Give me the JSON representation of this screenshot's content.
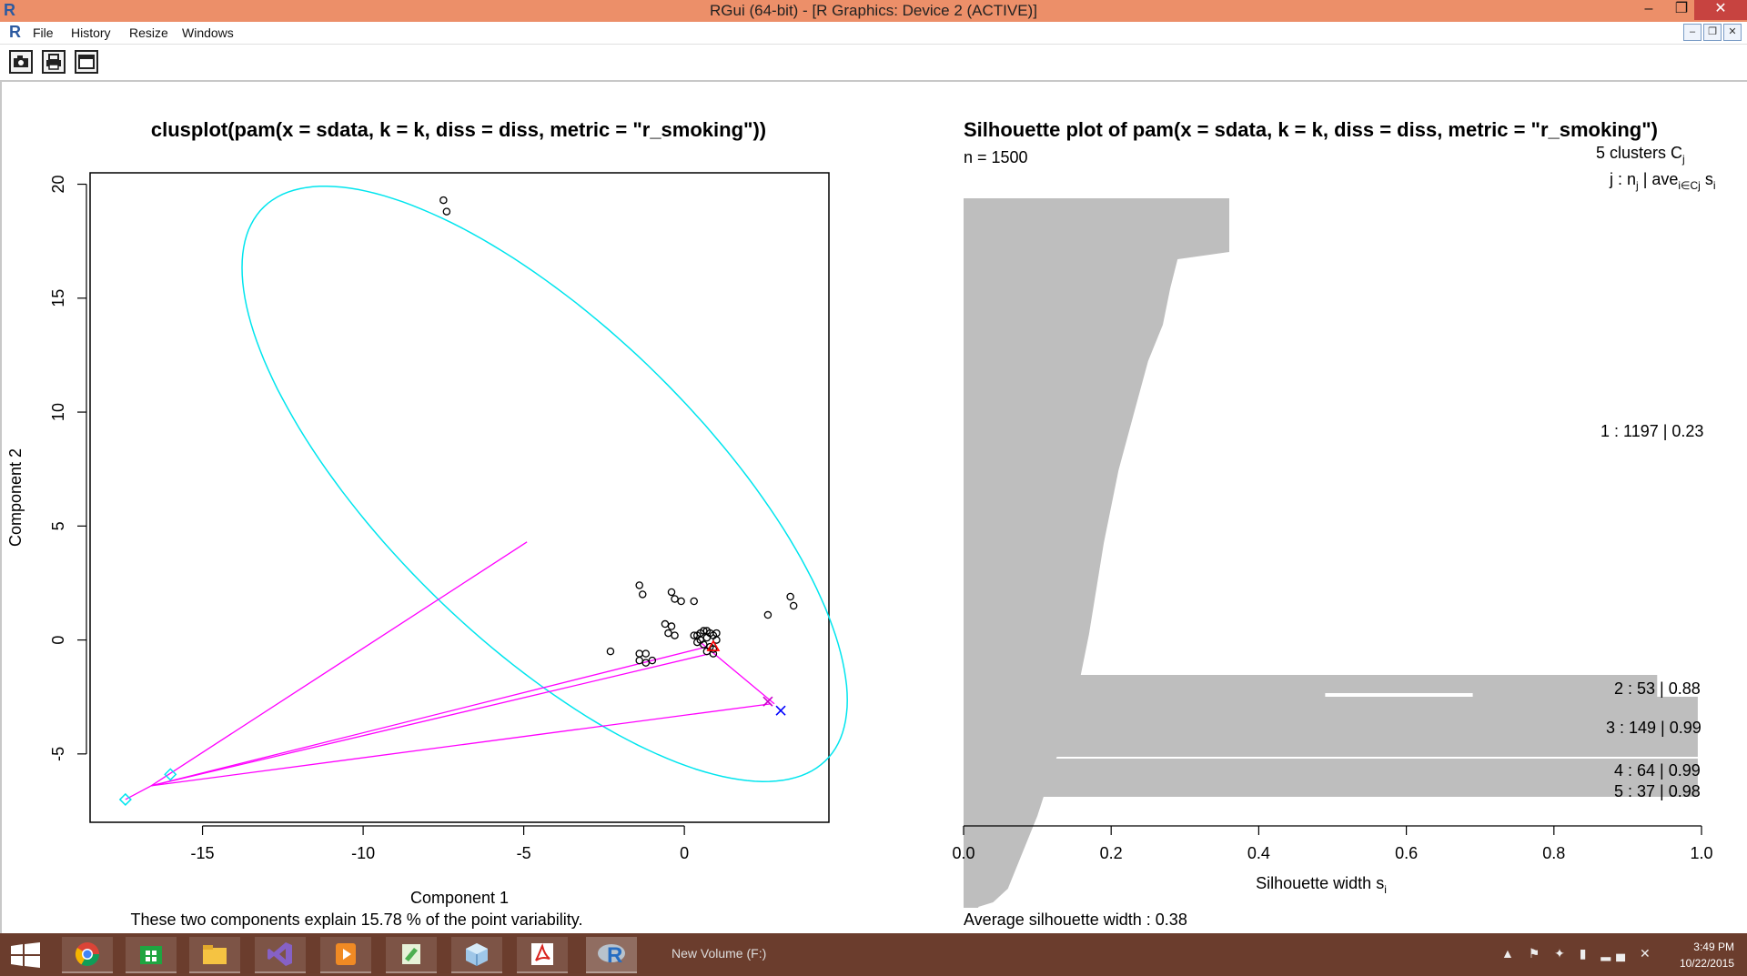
{
  "window": {
    "title": "RGui (64-bit) - [R Graphics: Device 2 (ACTIVE)]",
    "minimize_glyph": "–",
    "maximize_glyph": "❐",
    "close_glyph": "✕"
  },
  "menu": {
    "file": "File",
    "history": "History",
    "resize": "Resize",
    "windows": "Windows"
  },
  "toolbar": {
    "icons": [
      "camera-icon",
      "printer-icon",
      "window-icon"
    ]
  },
  "left_plot": {
    "title": "clusplot(pam(x = sdata, k = k, diss = diss, metric = \"r_smoking\"))",
    "xlabel": "Component 1",
    "ylabel": "Component 2",
    "subtitle": "These two components explain 15.78 % of the point variability.",
    "x_ticks": [
      "-15",
      "-10",
      "-5",
      "0"
    ],
    "y_ticks": [
      "-5",
      "0",
      "5",
      "10",
      "15",
      "20"
    ]
  },
  "right_plot": {
    "title": "Silhouette plot of pam(x = sdata, k = k, diss = diss, metric = \"r_smoking\")",
    "n_label": "n = 1500",
    "clusters_label": "5  clusters  C",
    "clusters_sub": "j",
    "header_j": "j :  n",
    "header_sub_j": "j",
    "header_ave": " | ave",
    "header_sub_ave": "i∈Cj",
    "header_s": "  s",
    "header_sub_s": "i",
    "xlabel": "Silhouette width s",
    "xlabel_sub": "i",
    "x_ticks": [
      "0.0",
      "0.2",
      "0.4",
      "0.6",
      "0.8",
      "1.0"
    ],
    "avg_label": "Average silhouette width :  0.38",
    "cluster_labels": [
      "1 :   1197  |  0.23",
      "2 :   53  |  0.88",
      "3 :   149  |  0.99",
      "4 :   64  |  0.99",
      "5 :   37  |  0.98"
    ]
  },
  "chart_data": [
    {
      "type": "scatter",
      "title": "clusplot(pam(x = sdata, k = k, diss = diss, metric = \"r_smoking\"))",
      "xlabel": "Component 1",
      "ylabel": "Component 2",
      "xlim": [
        -18.5,
        4.5
      ],
      "ylim": [
        -8,
        20.5
      ],
      "ellipse": {
        "center": [
          -4.35,
          6.85
        ],
        "semi_major": 15.1,
        "semi_minor": 5.6,
        "angle_deg": -57.3,
        "color": "#00e5ee"
      },
      "points": [
        [
          -7.5,
          19.3
        ],
        [
          -7.4,
          18.8
        ],
        [
          3.3,
          1.9
        ],
        [
          3.4,
          1.5
        ],
        [
          2.6,
          1.1
        ],
        [
          -2.3,
          -0.5
        ],
        [
          -1.4,
          2.4
        ],
        [
          -1.3,
          2.0
        ],
        [
          -0.4,
          2.1
        ],
        [
          -0.3,
          1.8
        ],
        [
          -0.1,
          1.7
        ],
        [
          0.3,
          1.7
        ],
        [
          -0.6,
          0.7
        ],
        [
          -0.4,
          0.6
        ],
        [
          -0.5,
          0.3
        ],
        [
          -0.3,
          0.2
        ],
        [
          -1.4,
          -0.6
        ],
        [
          -1.2,
          -0.6
        ],
        [
          -1.4,
          -0.9
        ],
        [
          -1.2,
          -1.0
        ],
        [
          -1.0,
          -0.9
        ],
        [
          0.3,
          0.2
        ],
        [
          0.5,
          0.3
        ],
        [
          0.7,
          0.4
        ],
        [
          0.9,
          0.2
        ],
        [
          0.4,
          -0.1
        ],
        [
          0.6,
          -0.2
        ],
        [
          0.8,
          -0.3
        ],
        [
          1.0,
          0.0
        ],
        [
          0.5,
          0.0
        ],
        [
          0.7,
          0.1
        ],
        [
          0.9,
          -0.4
        ],
        [
          0.6,
          0.4
        ],
        [
          0.8,
          0.3
        ],
        [
          0.4,
          0.2
        ],
        [
          1.0,
          0.3
        ],
        [
          0.7,
          -0.5
        ],
        [
          0.9,
          -0.6
        ]
      ],
      "medoids": [
        {
          "x": 0.9,
          "y": -0.3,
          "color": "#ff0000"
        },
        {
          "x": 2.6,
          "y": -2.7,
          "color": "#cc00cc"
        },
        {
          "x": 3.0,
          "y": -3.1,
          "color": "#0000ff"
        },
        {
          "x": -16.0,
          "y": -5.9,
          "color": "#00e5ee"
        },
        {
          "x": -17.4,
          "y": -7.0,
          "color": "#00e5ee"
        }
      ],
      "segments": [
        {
          "from": [
            -16.6,
            -6.4
          ],
          "to": [
            -4.9,
            4.3
          ]
        },
        {
          "from": [
            -16.6,
            -6.4
          ],
          "to": [
            0.7,
            -0.3
          ]
        },
        {
          "from": [
            -16.6,
            -6.4
          ],
          "to": [
            0.8,
            -0.6
          ]
        },
        {
          "from": [
            -16.6,
            -6.4
          ],
          "to": [
            2.7,
            -2.8
          ]
        },
        {
          "from": [
            0.5,
            -0.1
          ],
          "to": [
            2.8,
            -2.8
          ]
        },
        {
          "from": [
            -16.6,
            -6.4
          ],
          "to": [
            -17.4,
            -7.0
          ]
        }
      ],
      "segment_color": "#ff00ff"
    },
    {
      "type": "bar",
      "orientation": "horizontal",
      "title": "Silhouette plot of pam(x = sdata, k = k, diss = diss, metric = \"r_smoking\")",
      "xlabel": "Silhouette width s_i",
      "xlim": [
        0,
        1
      ],
      "n": 1500,
      "clusters": [
        {
          "j": 1,
          "n": 1197,
          "ave": 0.23,
          "profile": [
            [
              0.36,
              1
            ],
            [
              0.36,
              60
            ],
            [
              0.29,
              68
            ],
            [
              0.28,
              100
            ],
            [
              0.27,
              140
            ],
            [
              0.25,
              180
            ],
            [
              0.23,
              240
            ],
            [
              0.21,
              300
            ],
            [
              0.19,
              380
            ],
            [
              0.17,
              480
            ],
            [
              0.15,
              560
            ],
            [
              0.12,
              630
            ],
            [
              0.1,
              680
            ],
            [
              0.08,
              720
            ],
            [
              0.06,
              760
            ],
            [
              0.04,
              775
            ],
            [
              0.02,
              780
            ],
            [
              0.02,
              781
            ]
          ]
        },
        {
          "j": 2,
          "n": 53,
          "ave": 0.88
        },
        {
          "j": 3,
          "n": 149,
          "ave": 0.99
        },
        {
          "j": 4,
          "n": 64,
          "ave": 0.99
        },
        {
          "j": 5,
          "n": 37,
          "ave": 0.98
        }
      ],
      "average_silhouette_width": 0.38
    }
  ],
  "taskbar": {
    "time": "3:49 PM",
    "date": "10/22/2015",
    "new_volume": "New Volume (F:)"
  }
}
